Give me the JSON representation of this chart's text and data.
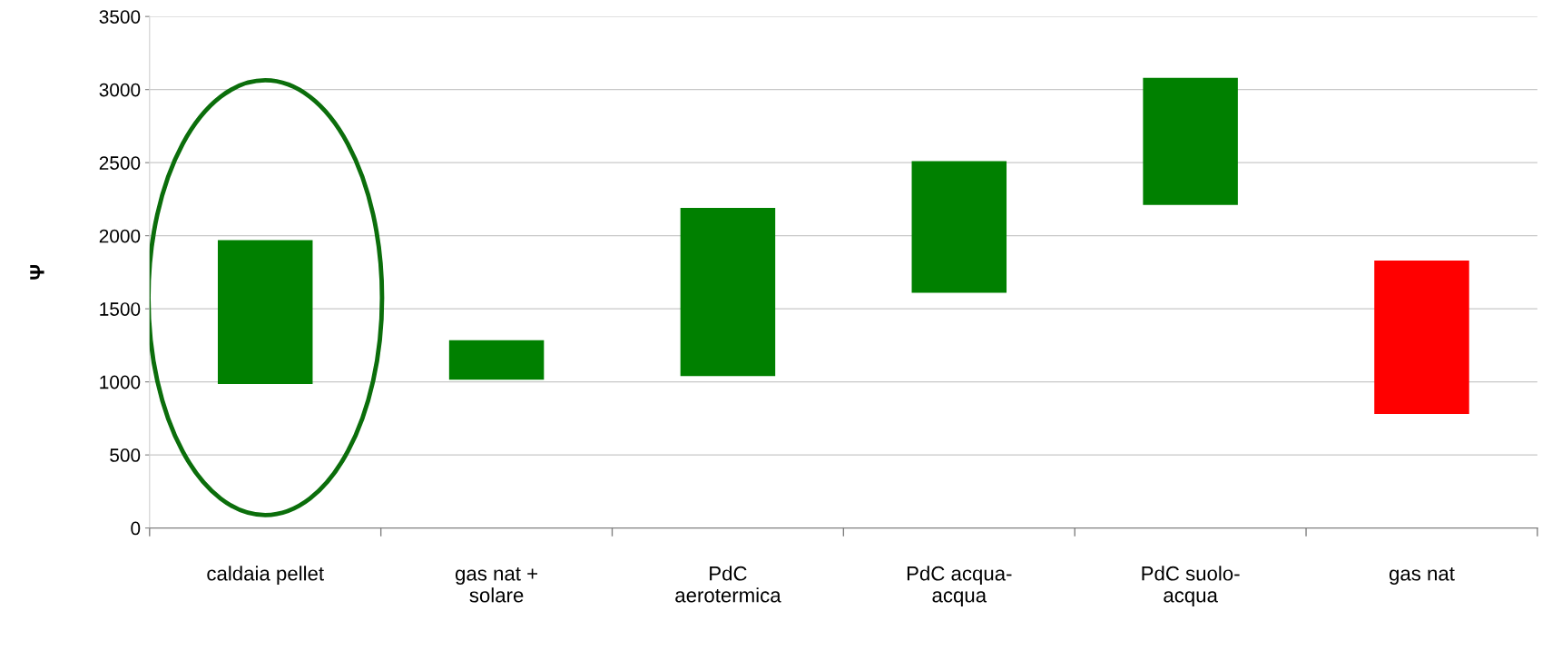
{
  "chart_data": {
    "type": "bar",
    "ylabel": "Ψ",
    "categories": [
      "caldaia pellet",
      "gas nat +\nsolare",
      "PdC\naerotermica",
      "PdC acqua-\nacqua",
      "PdC suolo-\nacqua",
      "gas nat"
    ],
    "base": [
      985,
      1015,
      1040,
      1610,
      2210,
      780
    ],
    "values": [
      985,
      270,
      1150,
      900,
      870,
      1050
    ],
    "colors": [
      "#008000",
      "#008000",
      "#008000",
      "#008000",
      "#008000",
      "#ff0000"
    ],
    "ylim": [
      0,
      3500
    ],
    "yticks": [
      0,
      500,
      1000,
      1500,
      2000,
      2500,
      3000,
      3500
    ],
    "grid": "y",
    "legend": false
  }
}
